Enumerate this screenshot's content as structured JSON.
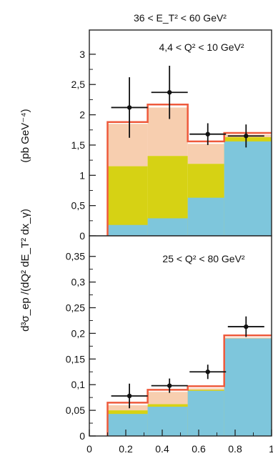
{
  "figure": {
    "header": "36 < E_T² < 60 GeV²",
    "ylabel_main": "d³σ_ep /(dQ² dE_T² dx_γ)",
    "ylabel_unit": "(pb GeV⁻⁴)"
  },
  "chart_data": [
    {
      "type": "bar",
      "panel": "top",
      "title": "4,4 < Q² < 10 GeV²",
      "ylim": [
        0,
        3.4
      ],
      "yticks": [
        0,
        0.5,
        1,
        1.5,
        2,
        2.5,
        3
      ],
      "ytick_labels": [
        "0",
        "0,5",
        "1",
        "1,5",
        "2",
        "2,5",
        "3"
      ],
      "bins": [
        [
          0.1,
          0.32
        ],
        [
          0.32,
          0.54
        ],
        [
          0.54,
          0.74
        ],
        [
          0.74,
          1.0
        ]
      ],
      "series": [
        {
          "role": "blue_component",
          "color": "#7ec6dc",
          "values": [
            0.18,
            0.29,
            0.63,
            1.56
          ]
        },
        {
          "role": "yellow_component",
          "color": "#d6d214",
          "values": [
            1.15,
            1.32,
            1.19,
            1.63
          ]
        },
        {
          "role": "total_light_band",
          "color": "#f6c9a6",
          "values": [
            1.85,
            2.12,
            1.52,
            1.67
          ]
        },
        {
          "role": "total_red_line",
          "color": "#ee5a3c",
          "values": [
            1.88,
            2.17,
            1.56,
            1.7
          ]
        }
      ],
      "points": [
        {
          "x": 0.22,
          "y": 2.12,
          "yerr": 0.5,
          "xerr": 0.1
        },
        {
          "x": 0.44,
          "y": 2.37,
          "yerr": 0.44,
          "xerr": 0.1
        },
        {
          "x": 0.65,
          "y": 1.68,
          "yerr": 0.18,
          "xerr": 0.1
        },
        {
          "x": 0.86,
          "y": 1.65,
          "yerr": 0.19,
          "xerr": 0.1
        }
      ]
    },
    {
      "type": "bar",
      "panel": "bottom",
      "title": "25 < Q² < 80 GeV²",
      "ylim": [
        0,
        0.39
      ],
      "yticks": [
        0,
        0.05,
        0.1,
        0.15,
        0.2,
        0.25,
        0.3,
        0.35
      ],
      "ytick_labels": [
        "0",
        "0,05",
        "0,1",
        "0,15",
        "0,2",
        "0,25",
        "0,3",
        "0,35"
      ],
      "xlim": [
        0,
        1
      ],
      "xticks": [
        0,
        0.2,
        0.4,
        0.6,
        0.8,
        1
      ],
      "xtick_labels": [
        "0",
        "0.2",
        "0.4",
        "0.6",
        "0.8",
        "1"
      ],
      "bins": [
        [
          0.1,
          0.32
        ],
        [
          0.32,
          0.54
        ],
        [
          0.54,
          0.74
        ],
        [
          0.74,
          1.0
        ]
      ],
      "series": [
        {
          "role": "blue_component",
          "color": "#7ec6dc",
          "values": [
            0.043,
            0.057,
            0.088,
            0.19
          ]
        },
        {
          "role": "yellow_component",
          "color": "#d6d214",
          "values": [
            0.05,
            0.062,
            0.09,
            0.19
          ]
        },
        {
          "role": "total_light_band",
          "color": "#f6c9a6",
          "values": [
            0.06,
            0.086,
            0.093,
            0.192
          ]
        },
        {
          "role": "total_red_line",
          "color": "#ee5a3c",
          "values": [
            0.065,
            0.09,
            0.097,
            0.196
          ]
        }
      ],
      "points": [
        {
          "x": 0.22,
          "y": 0.078,
          "yerr": 0.024,
          "xerr": 0.1
        },
        {
          "x": 0.44,
          "y": 0.098,
          "yerr": 0.014,
          "xerr": 0.1
        },
        {
          "x": 0.65,
          "y": 0.125,
          "yerr": 0.014,
          "xerr": 0.1
        },
        {
          "x": 0.86,
          "y": 0.213,
          "yerr": 0.02,
          "xerr": 0.1
        }
      ]
    }
  ]
}
